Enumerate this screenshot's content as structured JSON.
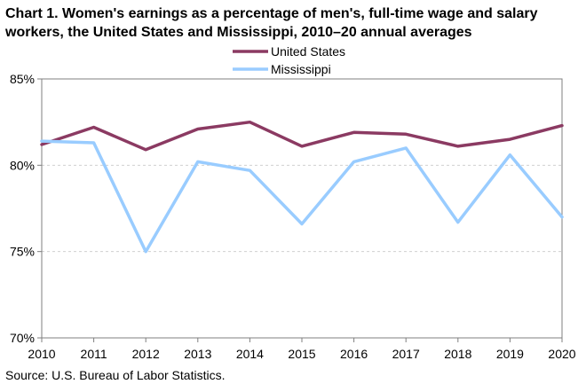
{
  "chart_data": {
    "type": "line",
    "title": "Chart 1. Women's earnings as a percentage of men's, full-time wage and salary workers, the United States and Mississippi,  2010–20 annual averages",
    "x": [
      "2010",
      "2011",
      "2012",
      "2013",
      "2014",
      "2015",
      "2016",
      "2017",
      "2018",
      "2019",
      "2020"
    ],
    "series": [
      {
        "name": "United States",
        "color": "#8b3a62",
        "values": [
          81.2,
          82.2,
          80.9,
          82.1,
          82.5,
          81.1,
          81.9,
          81.8,
          81.1,
          81.5,
          82.3
        ]
      },
      {
        "name": "Mississippi",
        "color": "#99ccff",
        "values": [
          81.4,
          81.3,
          75.0,
          80.2,
          79.7,
          76.6,
          80.2,
          81.0,
          76.7,
          80.6,
          77.0
        ]
      }
    ],
    "ylim": [
      70,
      85
    ],
    "yticks": [
      70,
      75,
      80,
      85
    ],
    "y_tick_suffix": "%",
    "grid": true,
    "legend_position": "top-center",
    "source": "Source:  U.S. Bureau of Labor Statistics."
  }
}
